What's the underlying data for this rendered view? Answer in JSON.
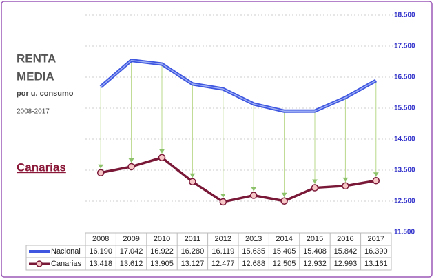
{
  "chart_data": {
    "type": "line",
    "title_lines": [
      "RENTA",
      "MEDIA"
    ],
    "subtitle": "por u. consumo",
    "period": "2008-2017",
    "annotation": "Canarias",
    "categories": [
      "2008",
      "2009",
      "2010",
      "2011",
      "2012",
      "2013",
      "2014",
      "2015",
      "2016",
      "2017"
    ],
    "series": [
      {
        "name": "Nacional",
        "color": "#3f57e0",
        "values": [
          16190,
          17042,
          16922,
          16280,
          16119,
          15635,
          15405,
          15408,
          15842,
          16390
        ],
        "value_labels": [
          "16.190",
          "17.042",
          "16.922",
          "16.280",
          "16.119",
          "15.635",
          "15.405",
          "15.408",
          "15.842",
          "16.390"
        ]
      },
      {
        "name": "Canarias",
        "color": "#7a1838",
        "values": [
          13418,
          13612,
          13905,
          13127,
          12477,
          12688,
          12505,
          12932,
          12993,
          13161
        ],
        "value_labels": [
          "13.418",
          "13.612",
          "13.905",
          "13.127",
          "12.477",
          "12.688",
          "12.505",
          "12.932",
          "12.993",
          "13.161"
        ]
      }
    ],
    "ylim": [
      11500,
      18500
    ],
    "yticks": [
      {
        "value": 11500,
        "label": "11.500"
      },
      {
        "value": 12500,
        "label": "12.500"
      },
      {
        "value": 13500,
        "label": "13.500"
      },
      {
        "value": 14500,
        "label": "14.500"
      },
      {
        "value": 15500,
        "label": "15.500"
      },
      {
        "value": 16500,
        "label": "16.500"
      },
      {
        "value": 17500,
        "label": "17.500"
      },
      {
        "value": 18500,
        "label": "18.500"
      }
    ],
    "grid": true
  }
}
